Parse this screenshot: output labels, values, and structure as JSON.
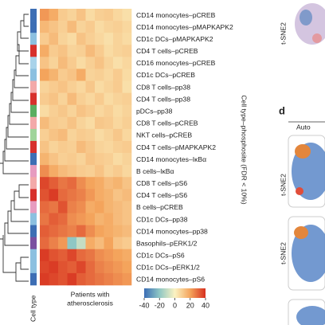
{
  "chart_data": {
    "type": "heatmap",
    "rows": [
      "CD14 monocytes–pCREB",
      "CD14 monocytes–pMAPKAPK2",
      "CD1c DCs–pMAPKAPK2",
      "CD4 T cells–pCREB",
      "CD16 monocytes–pCREB",
      "CD1c DCs–pCREB",
      "CD8 T cells–pp38",
      "CD4 T cells–pp38",
      "pDCs–pp38",
      "CD8 T cells–pCREB",
      "NKT cells–pCREB",
      "CD4 T cells–pMAPKAPK2",
      "CD14 monocytes–IκBα",
      "B cells–IκBα",
      "CD8 T cells–pS6",
      "CD4 T cells–pS6",
      "B cells–pCREB",
      "CD1c DCs–pp38",
      "CD14 monocytes–pp38",
      "Basophils–pERK1/2",
      "CD1c DCs–pS6",
      "CD1c DCs–pERK1/2",
      "CD14 monocytes–pS6"
    ],
    "row_colors": [
      "#3d6eb4",
      "#3d6eb4",
      "#8cc0e0",
      "#d7302c",
      "#a9d3ea",
      "#8cc0e0",
      "#f3a9a9",
      "#d7302c",
      "#5aae61",
      "#f3a9a9",
      "#9fd49a",
      "#d7302c",
      "#3d6eb4",
      "#e79cc0",
      "#f3a9a9",
      "#d7302c",
      "#e79cc0",
      "#8cc0e0",
      "#3d6eb4",
      "#7b4fa0",
      "#8cc0e0",
      "#8cc0e0",
      "#3d6eb4"
    ],
    "values": [
      [
        22,
        18,
        10,
        8,
        12,
        6,
        9,
        10,
        7,
        5
      ],
      [
        15,
        12,
        9,
        14,
        8,
        10,
        6,
        8,
        9,
        7
      ],
      [
        10,
        14,
        8,
        6,
        12,
        9,
        7,
        5,
        8,
        6
      ],
      [
        18,
        10,
        12,
        8,
        9,
        14,
        10,
        6,
        8,
        9
      ],
      [
        12,
        8,
        14,
        10,
        6,
        9,
        12,
        8,
        5,
        7
      ],
      [
        20,
        16,
        10,
        12,
        18,
        8,
        9,
        7,
        10,
        6
      ],
      [
        8,
        10,
        12,
        9,
        7,
        11,
        6,
        8,
        10,
        5
      ],
      [
        10,
        12,
        8,
        14,
        9,
        7,
        10,
        6,
        8,
        9
      ],
      [
        6,
        9,
        11,
        8,
        12,
        10,
        7,
        9,
        6,
        8
      ],
      [
        14,
        10,
        9,
        12,
        8,
        6,
        11,
        10,
        7,
        9
      ],
      [
        9,
        12,
        14,
        8,
        10,
        9,
        6,
        8,
        11,
        7
      ],
      [
        12,
        8,
        10,
        9,
        14,
        11,
        8,
        7,
        9,
        10
      ],
      [
        16,
        12,
        9,
        10,
        8,
        12,
        10,
        9,
        6,
        8
      ],
      [
        24,
        18,
        14,
        12,
        10,
        9,
        12,
        8,
        10,
        7
      ],
      [
        36,
        32,
        28,
        30,
        24,
        20,
        18,
        14,
        16,
        12
      ],
      [
        34,
        38,
        30,
        28,
        26,
        22,
        18,
        16,
        12,
        14
      ],
      [
        30,
        28,
        34,
        26,
        24,
        18,
        20,
        16,
        14,
        12
      ],
      [
        28,
        32,
        30,
        24,
        22,
        20,
        16,
        18,
        14,
        12
      ],
      [
        32,
        30,
        28,
        26,
        30,
        24,
        20,
        18,
        16,
        14
      ],
      [
        30,
        26,
        22,
        -20,
        -10,
        18,
        14,
        20,
        12,
        10
      ],
      [
        38,
        34,
        32,
        36,
        30,
        28,
        24,
        22,
        20,
        18
      ],
      [
        36,
        38,
        34,
        32,
        36,
        30,
        26,
        24,
        22,
        20
      ],
      [
        38,
        36,
        34,
        38,
        32,
        30,
        28,
        26,
        24,
        22
      ]
    ],
    "row_axis_title": "Cell type–phosphosite (FDR < 10%)",
    "strip_label": "Cell type",
    "column_axis_title": [
      "Patients with",
      "atherosclerosis"
    ],
    "zlim": [
      -40,
      40
    ],
    "zticks": [
      -40,
      -20,
      0,
      20,
      40
    ],
    "colors": [
      "#3b6db5",
      "#8fc7c4",
      "#fbf2c2",
      "#f4a45c",
      "#d7301f"
    ]
  },
  "side_panel": {
    "panel_letter": "d",
    "column_header": "Auto",
    "axis_labels": [
      "t-SNE2",
      "t-SNE2",
      "t-SNE2"
    ]
  }
}
